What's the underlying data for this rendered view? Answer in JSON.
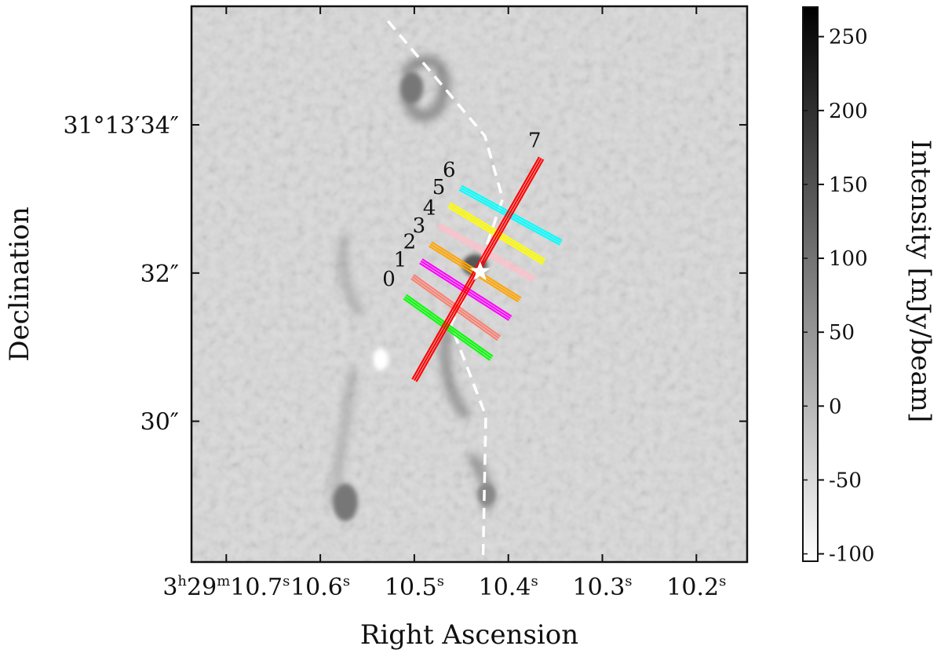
{
  "chart_data": {
    "type": "heatmap",
    "title": "",
    "xlabel": "Right Ascension",
    "ylabel": "Declination",
    "x_ticks": [
      {
        "label": "3h29m10.7s",
        "h": "3",
        "m": "29",
        "s": "10.7",
        "value": 10.7
      },
      {
        "label": "10.6s",
        "s": "10.6",
        "value": 10.6
      },
      {
        "label": "10.5s",
        "s": "10.5",
        "value": 10.5
      },
      {
        "label": "10.4s",
        "s": "10.4",
        "value": 10.4
      },
      {
        "label": "10.3s",
        "s": "10.3",
        "value": 10.3
      },
      {
        "label": "10.2s",
        "s": "10.2",
        "value": 10.2
      }
    ],
    "y_ticks": [
      {
        "label": "31°13′34″",
        "value": 34
      },
      {
        "label": "32″",
        "value": 32
      },
      {
        "label": "30″",
        "value": 30
      }
    ],
    "xlim": [
      10.737,
      10.146
    ],
    "ylim": [
      28.1,
      35.6
    ],
    "colorbar": {
      "label": "Intensity [mJy/beam]",
      "range": [
        -105,
        270
      ],
      "ticks": [
        "250",
        "200",
        "150",
        "100",
        "50",
        "0",
        "-50",
        "-100"
      ],
      "tick_values": [
        250,
        200,
        150,
        100,
        50,
        0,
        -50,
        -100
      ],
      "cmap": "gray_r"
    },
    "source_position": {
      "ra": 10.43,
      "dec": 32.02
    },
    "outflow_axis": [
      {
        "ra": 10.528,
        "dec": 35.4
      },
      {
        "ra": 10.425,
        "dec": 33.85
      },
      {
        "ra": 10.406,
        "dec": 33.0
      },
      {
        "ra": 10.432,
        "dec": 32.05
      },
      {
        "ra": 10.461,
        "dec": 31.3
      },
      {
        "ra": 10.424,
        "dec": 30.07
      },
      {
        "ra": 10.427,
        "dec": 28.1
      }
    ],
    "cuts": [
      {
        "label": "0",
        "color": "#00ff00",
        "start": {
          "ra": 10.51,
          "dec": 31.68
        },
        "end": {
          "ra": 10.418,
          "dec": 30.85
        },
        "label_at": {
          "ra": 10.527,
          "dec": 31.83
        }
      },
      {
        "label": "1",
        "color": "#fa8072",
        "start": {
          "ra": 10.502,
          "dec": 31.95
        },
        "end": {
          "ra": 10.41,
          "dec": 31.12
        },
        "label_at": {
          "ra": 10.515,
          "dec": 32.09
        }
      },
      {
        "label": "2",
        "color": "#ff00ff",
        "start": {
          "ra": 10.493,
          "dec": 32.16
        },
        "end": {
          "ra": 10.398,
          "dec": 31.39
        },
        "label_at": {
          "ra": 10.505,
          "dec": 32.33
        }
      },
      {
        "label": "3",
        "color": "#ffa500",
        "start": {
          "ra": 10.483,
          "dec": 32.39
        },
        "end": {
          "ra": 10.388,
          "dec": 31.64
        },
        "label_at": {
          "ra": 10.495,
          "dec": 32.55
        }
      },
      {
        "label": "4",
        "color": "#ffc0cb",
        "start": {
          "ra": 10.474,
          "dec": 32.64
        },
        "end": {
          "ra": 10.372,
          "dec": 31.91
        },
        "label_at": {
          "ra": 10.484,
          "dec": 32.79
        }
      },
      {
        "label": "5",
        "color": "#ffff00",
        "start": {
          "ra": 10.463,
          "dec": 32.92
        },
        "end": {
          "ra": 10.362,
          "dec": 32.15
        },
        "label_at": {
          "ra": 10.474,
          "dec": 33.07
        }
      },
      {
        "label": "6",
        "color": "#00ffff",
        "start": {
          "ra": 10.451,
          "dec": 33.15
        },
        "end": {
          "ra": 10.344,
          "dec": 32.41
        },
        "label_at": {
          "ra": 10.463,
          "dec": 33.3
        }
      },
      {
        "label": "7",
        "color": "#ff0000",
        "start": {
          "ra": 10.5,
          "dec": 30.55
        },
        "end": {
          "ra": 10.365,
          "dec": 33.55
        },
        "label_at": {
          "ra": 10.372,
          "dec": 33.7
        }
      }
    ],
    "legend": "none",
    "grid": false
  }
}
